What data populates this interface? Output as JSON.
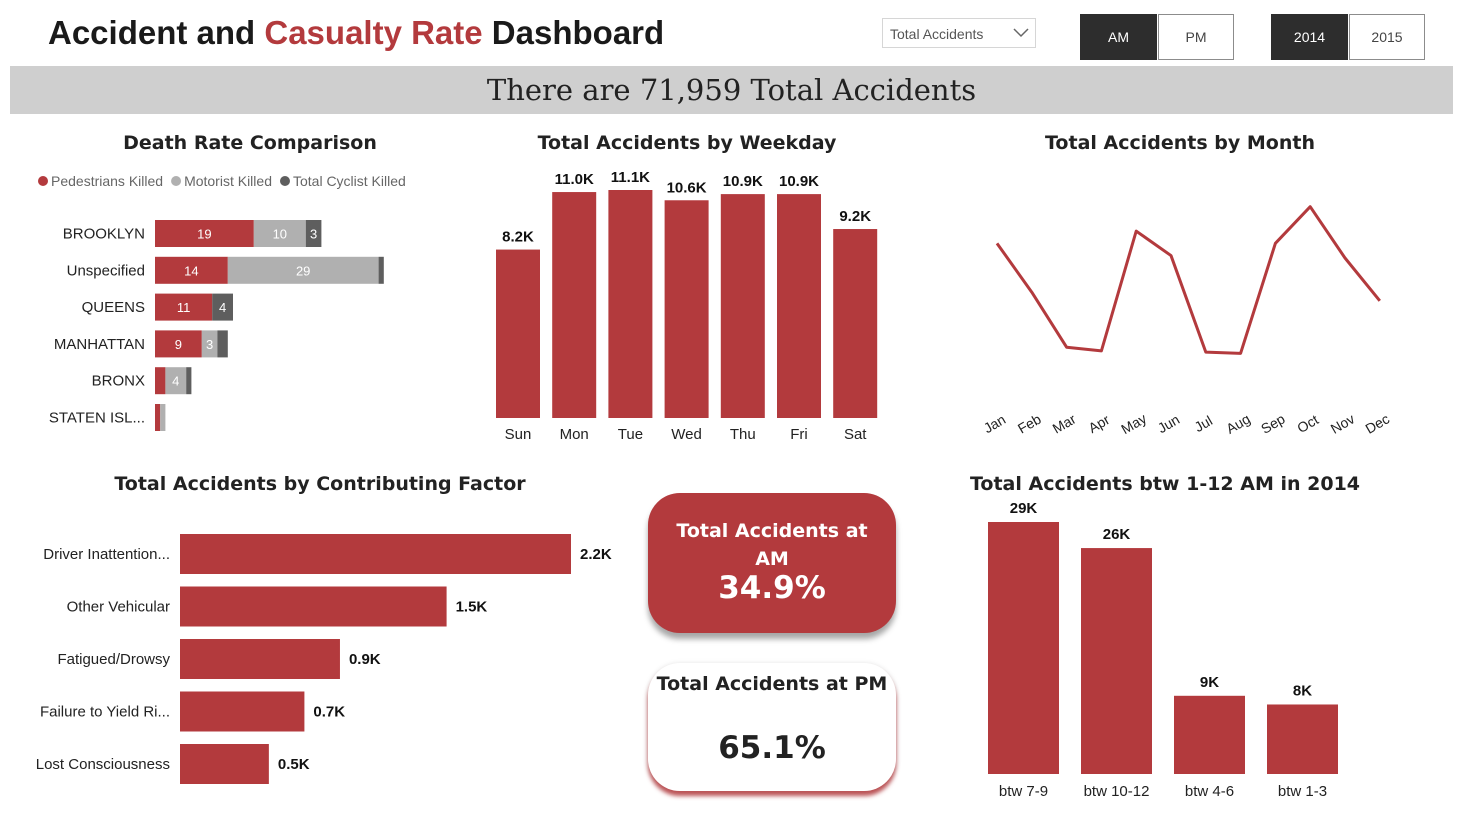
{
  "header": {
    "title_part1": "Accident and ",
    "title_accent": "Casualty Rate",
    "title_part2": " Dashboard",
    "dropdown_value": "Total Accidents",
    "time_toggle": [
      {
        "label": "AM",
        "selected": true
      },
      {
        "label": "PM",
        "selected": false
      }
    ],
    "year_toggle": [
      {
        "label": "2014",
        "selected": true
      },
      {
        "label": "2015",
        "selected": false
      }
    ]
  },
  "banner": {
    "text": "There are 71,959 Total Accidents"
  },
  "colors": {
    "accent": "#b33a3d",
    "grey_light": "#b0b0b0",
    "grey_dark": "#5e5e5e",
    "banner_bg": "#cfcfcf"
  },
  "kpis": {
    "am": {
      "label": "Total Accidents at AM",
      "value": "34.9%"
    },
    "pm": {
      "label": "Total Accidents at PM",
      "value": "65.1%"
    }
  },
  "chart_data": [
    {
      "id": "death_rate",
      "type": "bar",
      "orientation": "horizontal",
      "stacked": true,
      "title": "Death Rate Comparison",
      "legend_position": "top-left",
      "categories": [
        "BROOKLYN",
        "Unspecified",
        "QUEENS",
        "MANHATTAN",
        "BRONX",
        "STATEN ISL..."
      ],
      "series": [
        {
          "name": "Pedestrians Killed",
          "color": "#b33a3d",
          "values": [
            19,
            14,
            11,
            9,
            2,
            1
          ],
          "labels": [
            "19",
            "14",
            "11",
            "9",
            "",
            ""
          ]
        },
        {
          "name": "Motorist Killed",
          "color": "#b0b0b0",
          "values": [
            10,
            29,
            0,
            3,
            4,
            1
          ],
          "labels": [
            "10",
            "29",
            "",
            "3",
            "4",
            ""
          ]
        },
        {
          "name": "Total Cyclist Killed",
          "color": "#5e5e5e",
          "values": [
            3,
            1,
            4,
            2,
            1,
            0
          ],
          "labels": [
            "3",
            "",
            "4",
            "",
            "",
            ""
          ]
        }
      ]
    },
    {
      "id": "weekday",
      "type": "bar",
      "title": "Total Accidents by Weekday",
      "categories": [
        "Sun",
        "Mon",
        "Tue",
        "Wed",
        "Thu",
        "Fri",
        "Sat"
      ],
      "values": [
        8200,
        11000,
        11100,
        10600,
        10900,
        10900,
        9200
      ],
      "labels": [
        "8.2K",
        "11.0K",
        "11.1K",
        "10.6K",
        "10.9K",
        "10.9K",
        "9.2K"
      ]
    },
    {
      "id": "month",
      "type": "line",
      "title": "Total Accidents by Month",
      "categories": [
        "Jan",
        "Feb",
        "Mar",
        "Apr",
        "May",
        "Jun",
        "Jul",
        "Aug",
        "Sep",
        "Oct",
        "Nov",
        "Dec"
      ],
      "values": [
        6200,
        5800,
        5350,
        5320,
        6300,
        6100,
        5310,
        5300,
        6200,
        6500,
        6080,
        5730
      ],
      "ylim": [
        5000,
        6800
      ]
    },
    {
      "id": "factor",
      "type": "bar",
      "orientation": "horizontal",
      "title": "Total Accidents by Contributing Factor",
      "categories": [
        "Driver Inattention...",
        "Other Vehicular",
        "Fatigued/Drowsy",
        "Failure to Yield Ri...",
        "Lost Consciousness"
      ],
      "values": [
        2200,
        1500,
        900,
        700,
        500
      ],
      "labels": [
        "2.2K",
        "1.5K",
        "0.9K",
        "0.7K",
        "0.5K"
      ]
    },
    {
      "id": "hours",
      "type": "bar",
      "title": "Total Accidents btw 1-12 AM in 2014",
      "categories": [
        "btw 7-9",
        "btw 10-12",
        "btw 4-6",
        "btw 1-3"
      ],
      "values": [
        29000,
        26000,
        9000,
        8000
      ],
      "labels": [
        "29K",
        "26K",
        "9K",
        "8K"
      ]
    }
  ]
}
